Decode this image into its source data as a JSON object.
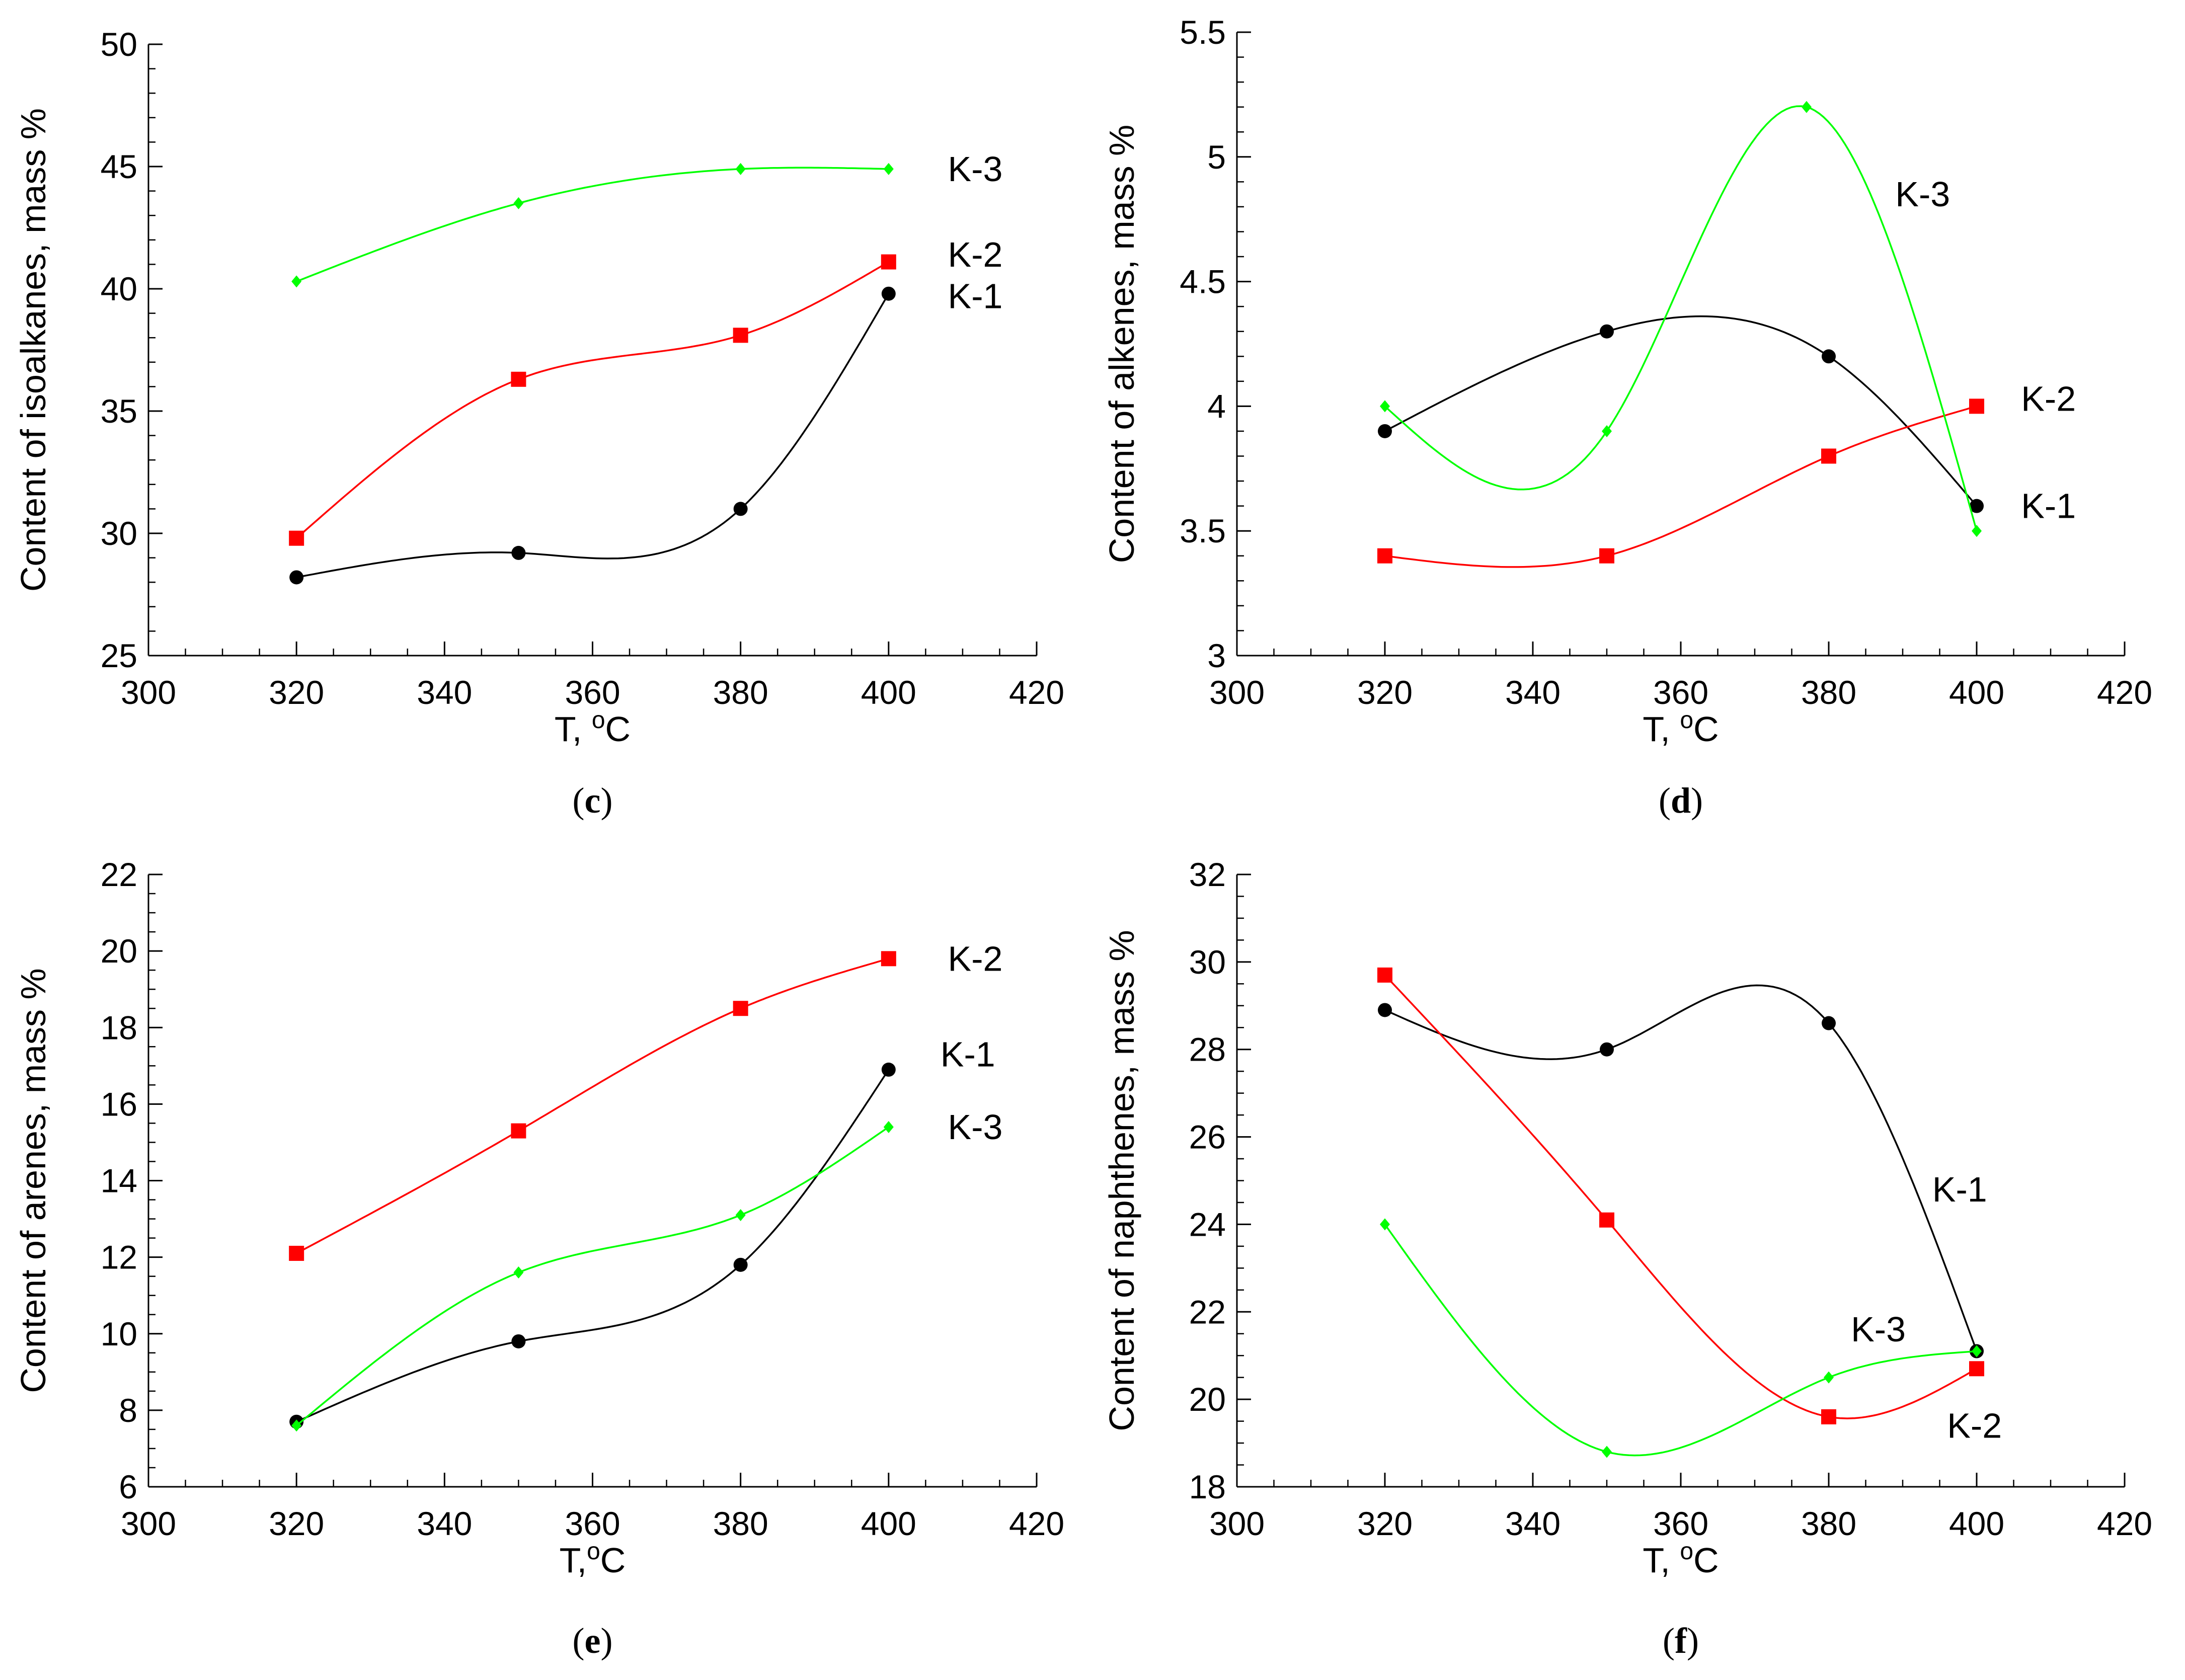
{
  "chart_data": [
    {
      "panel": "c",
      "type": "line",
      "caption_open": "(",
      "caption_letter": "c",
      "caption_close": ")",
      "xlabel": "T, ",
      "xlabel_sup": "o",
      "xlabel_unit": "C",
      "ylabel": "Content of isoalkanes, mass %",
      "xlim": [
        300,
        420
      ],
      "ylim": [
        25,
        50
      ],
      "xticks": [
        300,
        320,
        340,
        360,
        380,
        400,
        420
      ],
      "yticks": [
        25,
        30,
        35,
        40,
        45,
        50
      ],
      "xminor": 5,
      "yminor": 1,
      "x": [
        320,
        350,
        380,
        400
      ],
      "series": [
        {
          "name": "K-1",
          "color": "#000000",
          "marker": "circle",
          "values": [
            28.2,
            29.2,
            31.0,
            39.8
          ],
          "label_at": [
            408,
            39.7
          ]
        },
        {
          "name": "K-2",
          "color": "#ff0000",
          "marker": "square",
          "values": [
            29.8,
            36.3,
            38.1,
            41.1
          ],
          "label_at": [
            408,
            41.4
          ]
        },
        {
          "name": "K-3",
          "color": "#00ff00",
          "marker": "diamond",
          "values": [
            40.3,
            43.5,
            44.9,
            44.9
          ],
          "label_at": [
            408,
            44.9
          ]
        }
      ]
    },
    {
      "panel": "d",
      "type": "line",
      "caption_open": "(",
      "caption_letter": "d",
      "caption_close": ")",
      "xlabel": "T, ",
      "xlabel_sup": "o",
      "xlabel_unit": "C",
      "ylabel": "Content of alkenes, mass %",
      "xlim": [
        300,
        420
      ],
      "ylim": [
        3,
        5.5
      ],
      "xticks": [
        300,
        320,
        340,
        360,
        380,
        400,
        420
      ],
      "yticks": [
        3,
        3.5,
        4,
        4.5,
        5,
        5.5
      ],
      "ytick_labels": [
        "3",
        "3.5",
        "4",
        "4.5",
        "5",
        "5.5"
      ],
      "xminor": 5,
      "yminor": 0.1,
      "x": [
        320,
        350,
        380,
        400
      ],
      "series": [
        {
          "name": "K-1",
          "color": "#000000",
          "marker": "circle",
          "values": [
            3.9,
            4.3,
            4.2,
            3.6
          ],
          "label_at": [
            406,
            3.6
          ]
        },
        {
          "name": "K-2",
          "color": "#ff0000",
          "marker": "square",
          "values": [
            3.4,
            3.4,
            3.8,
            4.0
          ],
          "label_at": [
            406,
            4.03
          ]
        },
        {
          "name": "K-3",
          "color": "#00ff00",
          "marker": "diamond",
          "x": [
            320,
            350,
            377,
            400
          ],
          "values": [
            4.0,
            3.9,
            5.2,
            3.5
          ],
          "label_at": [
            389,
            4.85
          ]
        }
      ]
    },
    {
      "panel": "e",
      "type": "line",
      "caption_open": "(",
      "caption_letter": "e",
      "caption_close": ")",
      "xlabel": "T,",
      "xlabel_sup": "o",
      "xlabel_unit": "C",
      "ylabel": "Content of arenes, mass %",
      "xlim": [
        300,
        420
      ],
      "ylim": [
        6,
        22
      ],
      "xticks": [
        300,
        320,
        340,
        360,
        380,
        400,
        420
      ],
      "yticks": [
        6,
        8,
        10,
        12,
        14,
        16,
        18,
        20,
        22
      ],
      "xminor": 5,
      "yminor": 0.5,
      "x": [
        320,
        350,
        380,
        400
      ],
      "series": [
        {
          "name": "K-1",
          "color": "#000000",
          "marker": "circle",
          "values": [
            7.7,
            9.8,
            11.8,
            16.9
          ],
          "label_at": [
            407,
            17.3
          ]
        },
        {
          "name": "K-2",
          "color": "#ff0000",
          "marker": "square",
          "values": [
            12.1,
            15.3,
            18.5,
            19.8
          ],
          "label_at": [
            408,
            19.8
          ]
        },
        {
          "name": "K-3",
          "color": "#00ff00",
          "marker": "diamond",
          "values": [
            7.6,
            11.6,
            13.1,
            15.4
          ],
          "label_at": [
            408,
            15.4
          ]
        }
      ]
    },
    {
      "panel": "f",
      "type": "line",
      "caption_open": "(",
      "caption_letter": "f",
      "caption_close": ")",
      "xlabel": "T, ",
      "xlabel_sup": "o",
      "xlabel_unit": "C",
      "ylabel": "Content of naphthenes, mass %",
      "xlim": [
        300,
        420
      ],
      "ylim": [
        18,
        32
      ],
      "xticks": [
        300,
        320,
        340,
        360,
        380,
        400,
        420
      ],
      "yticks": [
        18,
        20,
        22,
        24,
        26,
        28,
        30,
        32
      ],
      "xminor": 5,
      "yminor": 0.5,
      "x": [
        320,
        350,
        380,
        400
      ],
      "series": [
        {
          "name": "K-1",
          "color": "#000000",
          "marker": "circle",
          "values": [
            28.9,
            28.0,
            28.6,
            21.1
          ],
          "label_at": [
            394,
            24.8
          ]
        },
        {
          "name": "K-2",
          "color": "#ff0000",
          "marker": "square",
          "values": [
            29.7,
            24.1,
            19.6,
            20.7
          ],
          "label_at": [
            396,
            19.4
          ]
        },
        {
          "name": "K-3",
          "color": "#00ff00",
          "marker": "diamond",
          "values": [
            24.0,
            18.8,
            20.5,
            21.1
          ],
          "label_at": [
            383,
            21.6
          ]
        }
      ]
    }
  ]
}
